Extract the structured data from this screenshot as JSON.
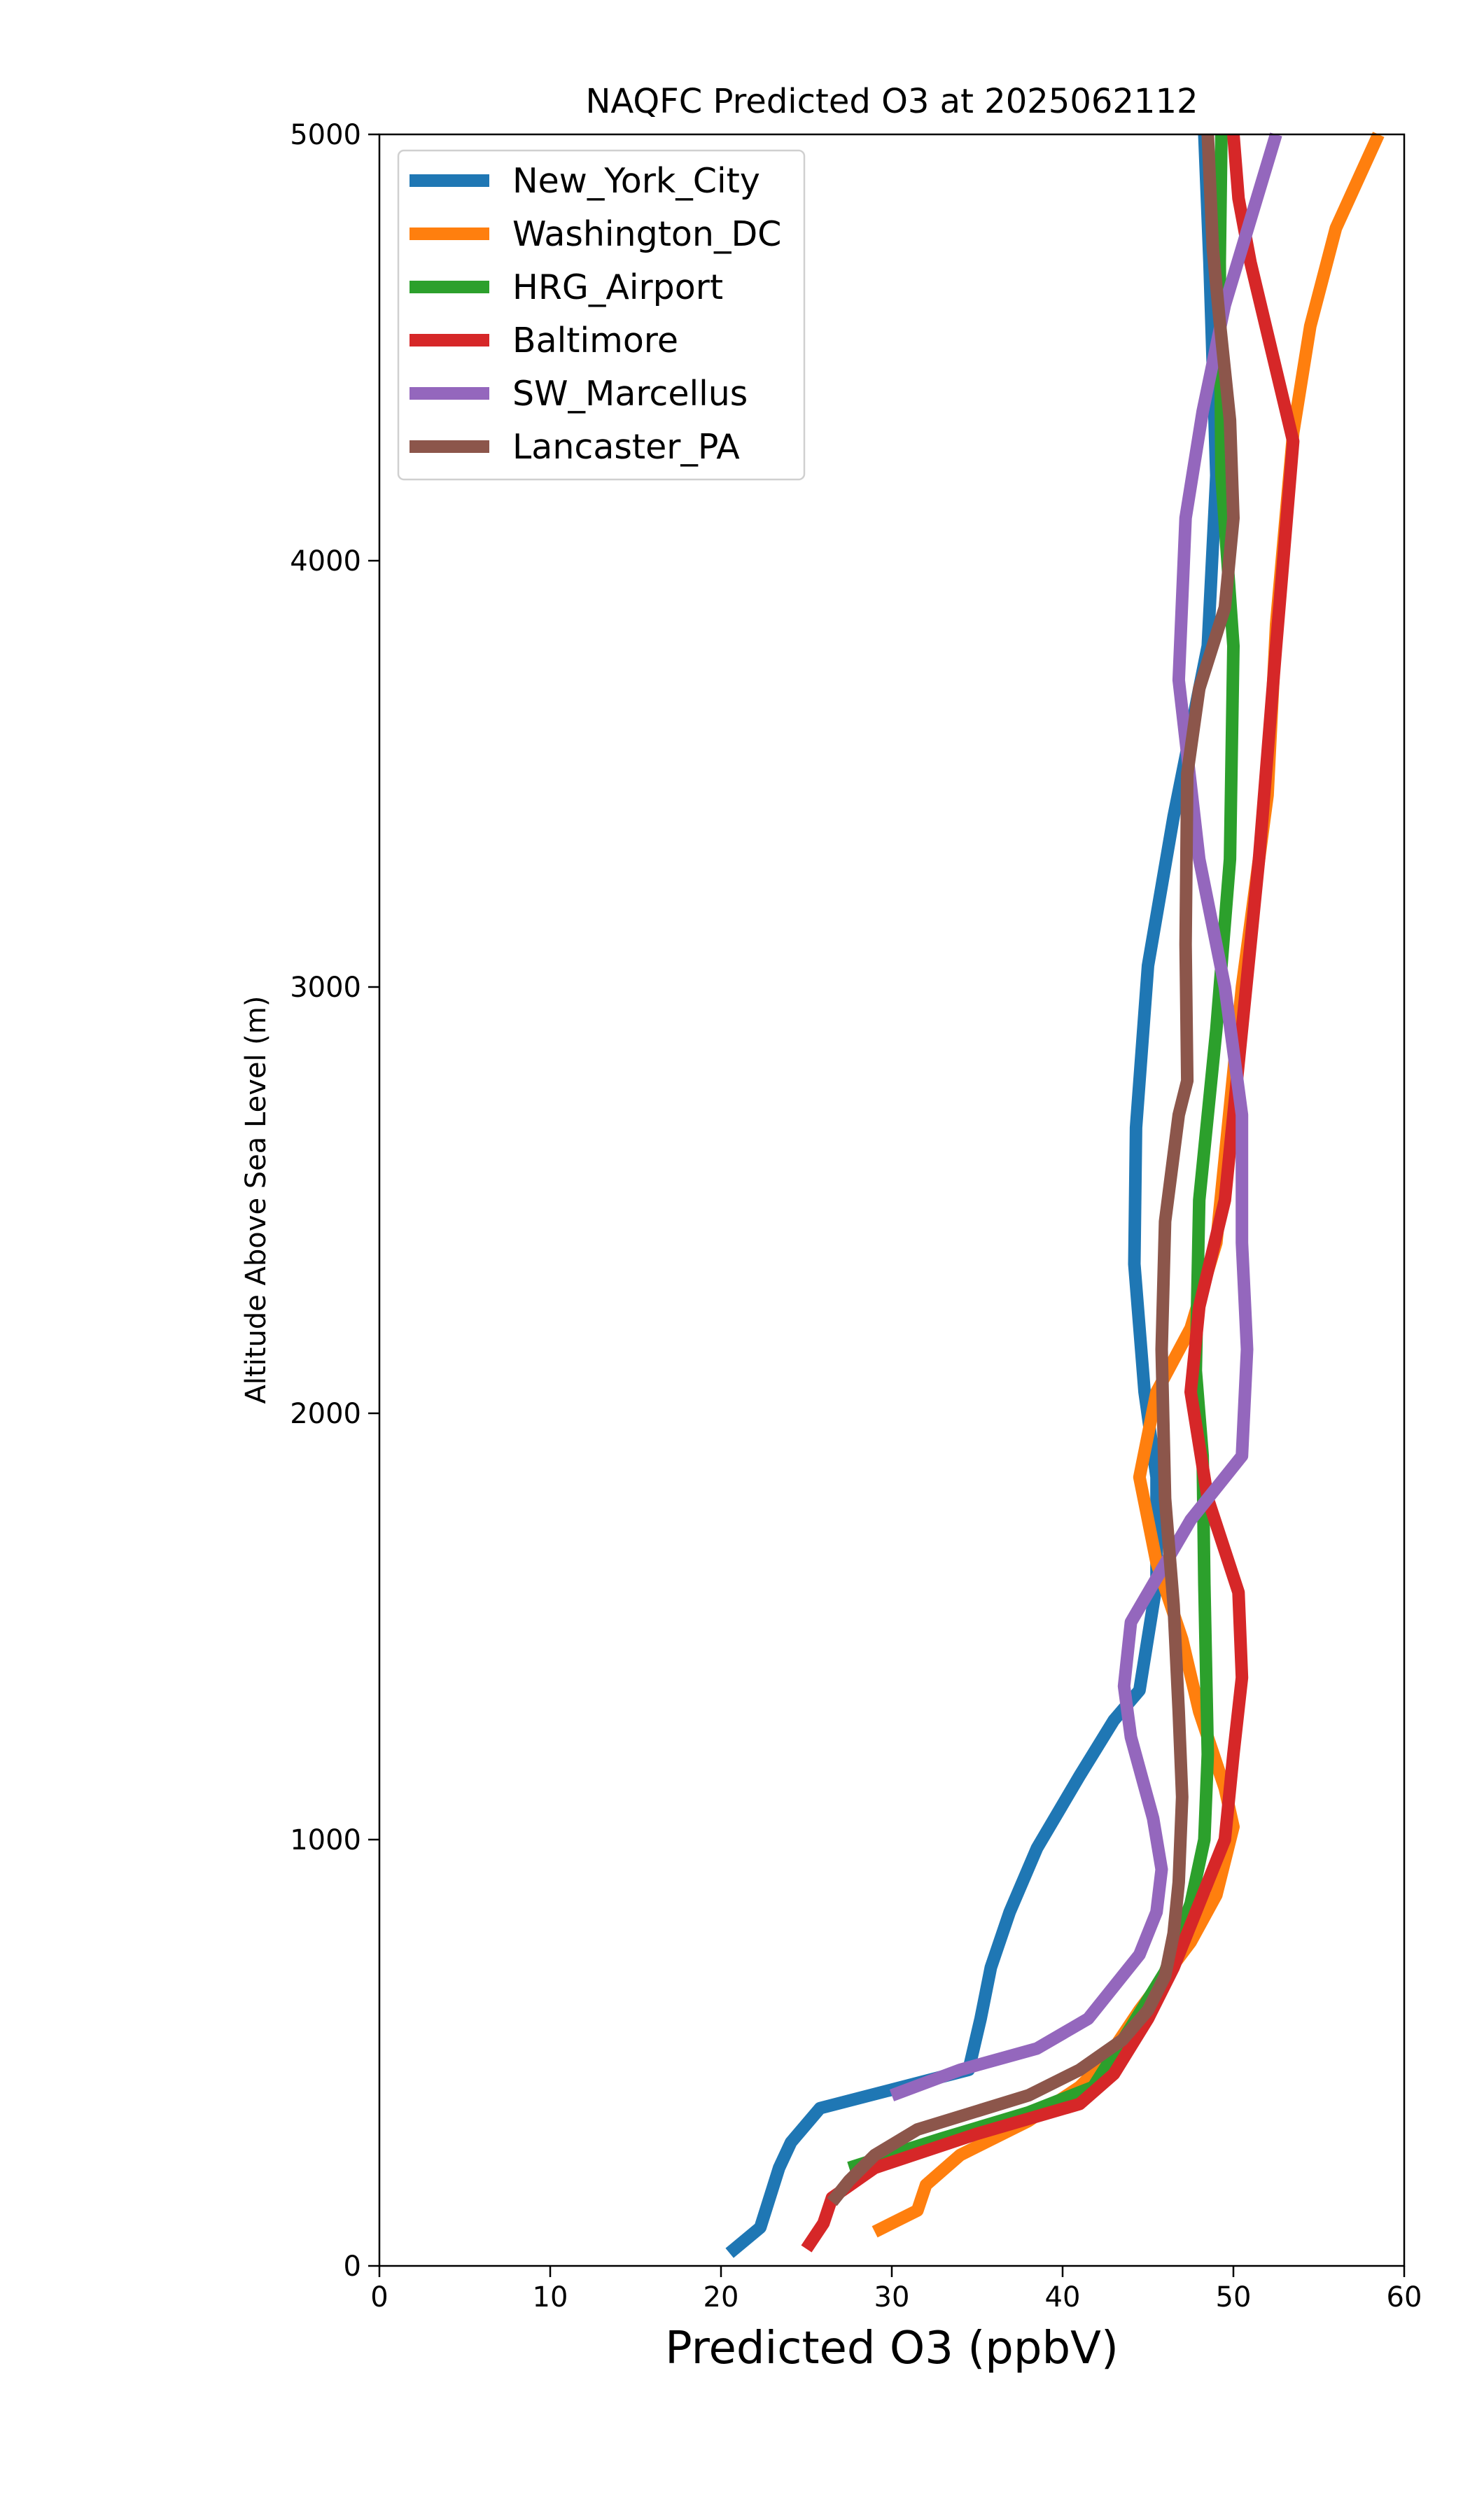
{
  "chart_data": {
    "type": "line",
    "title": "NAQFC Predicted O3 at 2025062112",
    "xlabel": "Predicted O3 (ppbV)",
    "ylabel": "Altitude Above Sea Level (m)",
    "xlim": [
      0,
      60
    ],
    "ylim": [
      0,
      5000
    ],
    "x_ticks": [
      "0",
      "10",
      "20",
      "30",
      "40",
      "50",
      "60"
    ],
    "y_ticks": [
      "0",
      "1000",
      "2000",
      "3000",
      "4000",
      "5000"
    ],
    "grid": false,
    "legend_position": "upper-left",
    "series": [
      {
        "name": "New_York_City",
        "color": "#1f77b4",
        "points": [
          [
            20.5,
            30
          ],
          [
            22.3,
            90
          ],
          [
            23.4,
            230
          ],
          [
            24.1,
            290
          ],
          [
            25.8,
            370
          ],
          [
            34.5,
            460
          ],
          [
            35.2,
            580
          ],
          [
            35.8,
            700
          ],
          [
            36.9,
            830
          ],
          [
            38.5,
            980
          ],
          [
            41,
            1150
          ],
          [
            43,
            1280
          ],
          [
            44.5,
            1350
          ],
          [
            45.5,
            1600
          ],
          [
            45.5,
            1850
          ],
          [
            44.8,
            2050
          ],
          [
            44.2,
            2350
          ],
          [
            44.3,
            2670
          ],
          [
            45,
            3050
          ],
          [
            46.5,
            3400
          ],
          [
            48.5,
            3800
          ],
          [
            49,
            4200
          ],
          [
            48.6,
            4700
          ],
          [
            48.3,
            5000
          ]
        ]
      },
      {
        "name": "Washington_DC",
        "color": "#ff7f0e",
        "points": [
          [
            29,
            80
          ],
          [
            31.5,
            130
          ],
          [
            32,
            190
          ],
          [
            34,
            260
          ],
          [
            38,
            340
          ],
          [
            41,
            420
          ],
          [
            42.5,
            480
          ],
          [
            44.5,
            600
          ],
          [
            47.5,
            760
          ],
          [
            49,
            870
          ],
          [
            50,
            1030
          ],
          [
            49.5,
            1120
          ],
          [
            48,
            1300
          ],
          [
            47,
            1470
          ],
          [
            45.5,
            1650
          ],
          [
            44.5,
            1850
          ],
          [
            45.5,
            2050
          ],
          [
            47.5,
            2200
          ],
          [
            49,
            2400
          ],
          [
            50,
            2800
          ],
          [
            50.5,
            3000
          ],
          [
            52,
            3450
          ],
          [
            52.5,
            3850
          ],
          [
            53.5,
            4300
          ],
          [
            54.5,
            4550
          ],
          [
            56,
            4780
          ],
          [
            58.5,
            5000
          ]
        ]
      },
      {
        "name": "HRG_Airport",
        "color": "#2ca02c",
        "points": [
          [
            27.5,
            230
          ],
          [
            33,
            300
          ],
          [
            38,
            360
          ],
          [
            41.8,
            420
          ],
          [
            44,
            560
          ],
          [
            46,
            690
          ],
          [
            47.5,
            850
          ],
          [
            48.3,
            1000
          ],
          [
            48.5,
            1200
          ],
          [
            48.3,
            1600
          ],
          [
            48.2,
            1900
          ],
          [
            47.8,
            2100
          ],
          [
            48,
            2500
          ],
          [
            49,
            2900
          ],
          [
            49.8,
            3300
          ],
          [
            50,
            3800
          ],
          [
            49.3,
            4200
          ],
          [
            49.2,
            4700
          ],
          [
            49.3,
            5000
          ]
        ]
      },
      {
        "name": "Baltimore",
        "color": "#d62728",
        "points": [
          [
            25,
            40
          ],
          [
            26,
            100
          ],
          [
            26.5,
            160
          ],
          [
            29,
            230
          ],
          [
            35,
            310
          ],
          [
            41,
            380
          ],
          [
            43,
            450
          ],
          [
            45,
            580
          ],
          [
            46.5,
            700
          ],
          [
            48,
            850
          ],
          [
            49.5,
            1000
          ],
          [
            50,
            1200
          ],
          [
            50.5,
            1380
          ],
          [
            50.3,
            1580
          ],
          [
            48.5,
            1800
          ],
          [
            47.5,
            2050
          ],
          [
            48,
            2250
          ],
          [
            49.5,
            2500
          ],
          [
            50.5,
            2900
          ],
          [
            51.5,
            3300
          ],
          [
            52.5,
            3800
          ],
          [
            53.5,
            4280
          ],
          [
            51,
            4700
          ],
          [
            50.3,
            4850
          ],
          [
            50,
            5000
          ]
        ]
      },
      {
        "name": "SW_Marcellus",
        "color": "#9467bd",
        "points": [
          [
            30,
            400
          ],
          [
            34,
            460
          ],
          [
            38.5,
            510
          ],
          [
            41.5,
            580
          ],
          [
            44.5,
            730
          ],
          [
            45.5,
            830
          ],
          [
            45.8,
            930
          ],
          [
            45.3,
            1050
          ],
          [
            44,
            1240
          ],
          [
            43.6,
            1360
          ],
          [
            44,
            1510
          ],
          [
            47.5,
            1750
          ],
          [
            50.5,
            1900
          ],
          [
            50.8,
            2150
          ],
          [
            50.5,
            2400
          ],
          [
            50.5,
            2700
          ],
          [
            49.5,
            3000
          ],
          [
            48,
            3300
          ],
          [
            46.8,
            3720
          ],
          [
            47.2,
            4100
          ],
          [
            48.2,
            4350
          ],
          [
            49.5,
            4600
          ],
          [
            52.5,
            5000
          ]
        ]
      },
      {
        "name": "Lancaster_PA",
        "color": "#8c564b",
        "points": [
          [
            26.5,
            150
          ],
          [
            27.5,
            200
          ],
          [
            29,
            260
          ],
          [
            31.5,
            320
          ],
          [
            38,
            400
          ],
          [
            41,
            460
          ],
          [
            43.5,
            530
          ],
          [
            45,
            600
          ],
          [
            46,
            680
          ],
          [
            46.5,
            780
          ],
          [
            46.8,
            900
          ],
          [
            47,
            1100
          ],
          [
            46.8,
            1300
          ],
          [
            46.5,
            1550
          ],
          [
            46,
            1800
          ],
          [
            45.8,
            2150
          ],
          [
            46,
            2450
          ],
          [
            46.8,
            2700
          ],
          [
            47.3,
            2780
          ],
          [
            47.2,
            3100
          ],
          [
            47.3,
            3500
          ],
          [
            48,
            3700
          ],
          [
            49.5,
            3890
          ],
          [
            50,
            4100
          ],
          [
            49.8,
            4330
          ],
          [
            49.2,
            4560
          ],
          [
            48.8,
            4730
          ],
          [
            48.5,
            5000
          ]
        ]
      }
    ]
  }
}
